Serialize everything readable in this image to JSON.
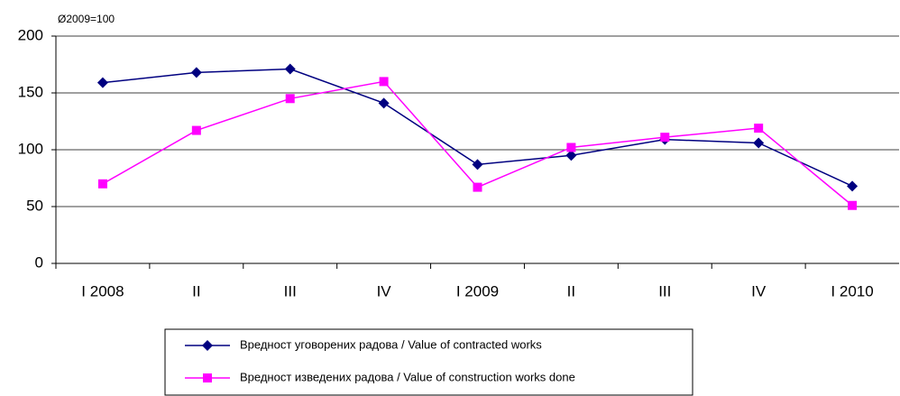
{
  "chart_data": {
    "type": "line",
    "annotation": "Ø2009=100",
    "categories": [
      "I 2008",
      "II",
      "III",
      "IV",
      "I 2009",
      "II",
      "III",
      "IV",
      "I 2010"
    ],
    "series": [
      {
        "name": "Вредност уговорених радова / Value of contracted works",
        "color": "#000080",
        "marker": "diamond",
        "values": [
          159,
          168,
          171,
          141,
          87,
          95,
          109,
          106,
          68
        ]
      },
      {
        "name": "Вредност изведених радова  / Value of construction works done",
        "color": "#ff00ff",
        "marker": "square",
        "values": [
          70,
          117,
          145,
          160,
          67,
          102,
          111,
          119,
          51
        ]
      }
    ],
    "ylim": [
      0,
      200
    ],
    "yticks": [
      0,
      50,
      100,
      150,
      200
    ],
    "grid": true
  }
}
